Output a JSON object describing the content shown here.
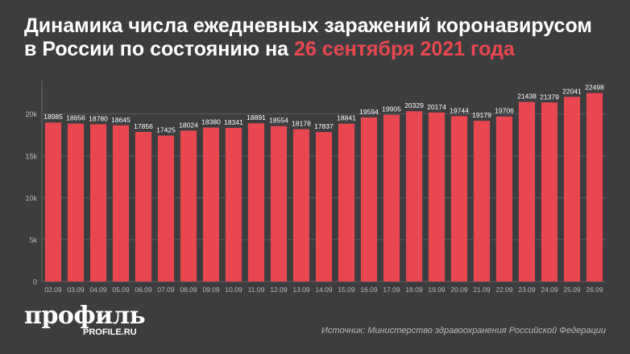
{
  "header": {
    "title_line1": "Динамика числа ежедневных заражений коронавирусом",
    "title_line2_prefix": "в России по состоянию на ",
    "title_line2_highlight": "26 сентября 2021 года"
  },
  "brand": {
    "logo": "профиль",
    "site": "PROFILE.RU"
  },
  "footer": {
    "source": "Источник: Министерство здравоохранения Российской Федерации"
  },
  "colors": {
    "background": "#3d3d40",
    "bar": "#e8474f",
    "accent": "#e8474f",
    "text": "#ffffff",
    "axis_text": "#b9b9bc"
  },
  "chart_data": {
    "type": "bar",
    "categories": [
      "02.09",
      "03.09",
      "04.09",
      "05.09",
      "06.09",
      "07.09",
      "08.09",
      "09.09",
      "10.09",
      "11.09",
      "12.09",
      "13.09",
      "14.09",
      "15.09",
      "16.09",
      "17.09",
      "18.09",
      "19.09",
      "20.09",
      "21.09",
      "22.09",
      "23.09",
      "24.09",
      "25.09",
      "26.09"
    ],
    "series": [
      {
        "values": [
          18985,
          18856,
          18780,
          18645,
          17856,
          17425,
          18024,
          18380,
          18341,
          18891,
          18554,
          18178,
          17837,
          18841,
          19594,
          19905,
          20329,
          20174,
          19744,
          19179,
          19706,
          21438,
          21379,
          22041,
          22498
        ]
      }
    ],
    "y_ticks": [
      0,
      5000,
      10000,
      15000,
      20000
    ],
    "y_tick_labels": [
      "0",
      "5k",
      "10k",
      "15k",
      "20k"
    ],
    "ylim": [
      0,
      24000
    ],
    "grid": true,
    "data_labels": true
  }
}
